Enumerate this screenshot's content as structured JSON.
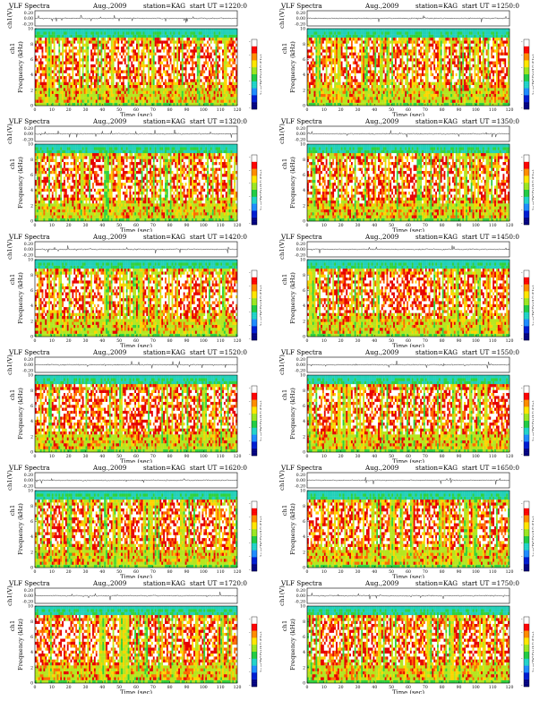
{
  "chart_data": [
    {
      "type": "heatmap",
      "title": "VLF Spectra",
      "date": "Aug.,2009",
      "station": "station=KAG",
      "start": "start UT =1220:0",
      "xlabel": "Time (sec)",
      "ylabel": "Frequency (kHz)",
      "ylabel_top": "ch1",
      "cb_label": "log(PSD)(V²/Hz)",
      "waveform_label": "ch1(V)",
      "xlim": [
        0,
        120
      ],
      "ylim": [
        0,
        10
      ],
      "xticks": [
        0,
        10,
        20,
        30,
        40,
        50,
        60,
        70,
        80,
        90,
        100,
        110,
        120
      ],
      "yticks": [
        0,
        2,
        4,
        6,
        8,
        10
      ],
      "wave_ticks": [
        "0.20",
        "0.00",
        "-0.20"
      ]
    },
    {
      "type": "heatmap",
      "title": "VLF Spectra",
      "date": "Aug.,2009",
      "station": "station=KAG",
      "start": "start UT =1250:0",
      "xlabel": "Time (sec)",
      "ylabel": "Frequency (kHz)",
      "ylabel_top": "ch1",
      "cb_label": "log(PSD)(V²/Hz)",
      "waveform_label": "ch1(V)",
      "xlim": [
        0,
        120
      ],
      "ylim": [
        0,
        10
      ],
      "xticks": [
        0,
        10,
        20,
        30,
        40,
        50,
        60,
        70,
        80,
        90,
        100,
        110,
        120
      ],
      "yticks": [
        0,
        2,
        4,
        6,
        8,
        10
      ],
      "wave_ticks": [
        "0.20",
        "0.00",
        "-0.20"
      ]
    },
    {
      "type": "heatmap",
      "title": "VLF Spectra",
      "date": "Aug.,2009",
      "station": "station=KAG",
      "start": "start UT =1320:0",
      "xlabel": "Time (sec)",
      "ylabel": "Frequency (kHz)",
      "ylabel_top": "ch1",
      "cb_label": "log(PSD)(V²/Hz)",
      "waveform_label": "ch1(V)",
      "xlim": [
        0,
        120
      ],
      "ylim": [
        0,
        10
      ],
      "xticks": [
        0,
        10,
        20,
        30,
        40,
        50,
        60,
        70,
        80,
        90,
        100,
        110,
        120
      ],
      "yticks": [
        0,
        2,
        4,
        6,
        8,
        10
      ],
      "wave_ticks": [
        "0.20",
        "0.00",
        "-0.20"
      ]
    },
    {
      "type": "heatmap",
      "title": "VLF Spectra",
      "date": "Aug.,2009",
      "station": "station=KAG",
      "start": "start UT =1350:0",
      "xlabel": "Time (sec)",
      "ylabel": "Frequency (kHz)",
      "ylabel_top": "ch1",
      "cb_label": "log(PSD)(V²/Hz)",
      "waveform_label": "ch1(V)",
      "xlim": [
        0,
        120
      ],
      "ylim": [
        0,
        10
      ],
      "xticks": [
        0,
        10,
        20,
        30,
        40,
        50,
        60,
        70,
        80,
        90,
        100,
        110,
        120
      ],
      "yticks": [
        0,
        2,
        4,
        6,
        8,
        10
      ],
      "wave_ticks": [
        "0.20",
        "0.00",
        "-0.20"
      ]
    },
    {
      "type": "heatmap",
      "title": "VLF Spectra",
      "date": "Aug.,2009",
      "station": "station=KAG",
      "start": "start UT =1420:0",
      "xlabel": "Time (sec)",
      "ylabel": "Frequency (kHz)",
      "ylabel_top": "ch1",
      "cb_label": "log(PSD)(V²/Hz)",
      "waveform_label": "ch1(V)",
      "xlim": [
        0,
        120
      ],
      "ylim": [
        0,
        10
      ],
      "xticks": [
        0,
        10,
        20,
        30,
        40,
        50,
        60,
        70,
        80,
        90,
        100,
        110,
        120
      ],
      "yticks": [
        0,
        2,
        4,
        6,
        8,
        10
      ],
      "wave_ticks": [
        "0.20",
        "0.00",
        "-0.20"
      ]
    },
    {
      "type": "heatmap",
      "title": "VLF Spectra",
      "date": "Aug.,2009",
      "station": "station=KAG",
      "start": "start UT =1450:0",
      "xlabel": "Time (sec)",
      "ylabel": "Frequency (kHz)",
      "ylabel_top": "ch1",
      "cb_label": "log(PSD)(V²/Hz)",
      "waveform_label": "ch1(V)",
      "xlim": [
        0,
        120
      ],
      "ylim": [
        0,
        10
      ],
      "xticks": [
        0,
        10,
        20,
        30,
        40,
        50,
        60,
        70,
        80,
        90,
        100,
        110,
        120
      ],
      "yticks": [
        0,
        2,
        4,
        6,
        8,
        10
      ],
      "wave_ticks": [
        "0.20",
        "0.00",
        "-0.20"
      ]
    },
    {
      "type": "heatmap",
      "title": "VLF Spectra",
      "date": "Aug.,2009",
      "station": "station=KAG",
      "start": "start UT =1520:0",
      "xlabel": "Time (sec)",
      "ylabel": "Frequency (kHz)",
      "ylabel_top": "ch1",
      "cb_label": "log(PSD)(V²/Hz)",
      "waveform_label": "ch1(V)",
      "xlim": [
        0,
        120
      ],
      "ylim": [
        0,
        10
      ],
      "xticks": [
        0,
        10,
        20,
        30,
        40,
        50,
        60,
        70,
        80,
        90,
        100,
        110,
        120
      ],
      "yticks": [
        0,
        2,
        4,
        6,
        8,
        10
      ],
      "wave_ticks": [
        "0.20",
        "0.00",
        "-0.20"
      ]
    },
    {
      "type": "heatmap",
      "title": "VLF Spectra",
      "date": "Aug.,2009",
      "station": "station=KAG",
      "start": "start UT =1550:0",
      "xlabel": "Time (sec)",
      "ylabel": "Frequency (kHz)",
      "ylabel_top": "ch1",
      "cb_label": "log(PSD)(V²/Hz)",
      "waveform_label": "ch1(V)",
      "xlim": [
        0,
        120
      ],
      "ylim": [
        0,
        10
      ],
      "xticks": [
        0,
        10,
        20,
        30,
        40,
        50,
        60,
        70,
        80,
        90,
        100,
        110,
        120
      ],
      "yticks": [
        0,
        2,
        4,
        6,
        8,
        10
      ],
      "wave_ticks": [
        "0.20",
        "0.00",
        "-0.20"
      ]
    },
    {
      "type": "heatmap",
      "title": "VLF Spectra",
      "date": "Aug.,2009",
      "station": "station=KAG",
      "start": "start UT =1620:0",
      "xlabel": "Time (sec)",
      "ylabel": "Frequency (kHz)",
      "ylabel_top": "ch1",
      "cb_label": "log(PSD)(V²/Hz)",
      "waveform_label": "ch1(V)",
      "xlim": [
        0,
        120
      ],
      "ylim": [
        0,
        10
      ],
      "xticks": [
        0,
        10,
        20,
        30,
        40,
        50,
        60,
        70,
        80,
        90,
        100,
        110,
        120
      ],
      "yticks": [
        0,
        2,
        4,
        6,
        8,
        10
      ],
      "wave_ticks": [
        "0.20",
        "0.00",
        "-0.20"
      ]
    },
    {
      "type": "heatmap",
      "title": "VLF Spectra",
      "date": "Aug.,2009",
      "station": "station=KAG",
      "start": "start UT =1650:0",
      "xlabel": "Time (sec)",
      "ylabel": "Frequency (kHz)",
      "ylabel_top": "ch1",
      "cb_label": "log(PSD)(V²/Hz)",
      "waveform_label": "ch1(V)",
      "xlim": [
        0,
        120
      ],
      "ylim": [
        0,
        10
      ],
      "xticks": [
        0,
        10,
        20,
        30,
        40,
        50,
        60,
        70,
        80,
        90,
        100,
        110,
        120
      ],
      "yticks": [
        0,
        2,
        4,
        6,
        8,
        10
      ],
      "wave_ticks": [
        "0.20",
        "0.00",
        "-0.20"
      ]
    },
    {
      "type": "heatmap",
      "title": "VLF Spectra",
      "date": "Aug.,2009",
      "station": "station=KAG",
      "start": "start UT =1720:0",
      "xlabel": "Time (sec)",
      "ylabel": "Frequency (kHz)",
      "ylabel_top": "ch1",
      "cb_label": "log(PSD)(V²/Hz)",
      "waveform_label": "ch1(V)",
      "xlim": [
        0,
        120
      ],
      "ylim": [
        0,
        10
      ],
      "xticks": [
        0,
        10,
        20,
        30,
        40,
        50,
        60,
        70,
        80,
        90,
        100,
        110,
        120
      ],
      "yticks": [
        0,
        2,
        4,
        6,
        8,
        10
      ],
      "wave_ticks": [
        "0.20",
        "0.00",
        "-0.20"
      ]
    },
    {
      "type": "heatmap",
      "title": "VLF Spectra",
      "date": "Aug.,2009",
      "station": "station=KAG",
      "start": "start UT =1750:0",
      "xlabel": "Time (sec)",
      "ylabel": "Frequency (kHz)",
      "ylabel_top": "ch1",
      "cb_label": "log(PSD)(V²/Hz)",
      "waveform_label": "ch1(V)",
      "xlim": [
        0,
        120
      ],
      "ylim": [
        0,
        10
      ],
      "xticks": [
        0,
        10,
        20,
        30,
        40,
        50,
        60,
        70,
        80,
        90,
        100,
        110,
        120
      ],
      "yticks": [
        0,
        2,
        4,
        6,
        8,
        10
      ],
      "wave_ticks": [
        "0.20",
        "0.00",
        "-0.20"
      ]
    }
  ],
  "colormap": [
    "#ffffff",
    "#e60000",
    "#ff6a00",
    "#ffd400",
    "#b4e61e",
    "#2fd23c",
    "#22d0b8",
    "#2aa0ff",
    "#0024c8"
  ],
  "colorbar_ticks": [
    "-",
    "-",
    "-",
    "-",
    "-",
    "-"
  ]
}
